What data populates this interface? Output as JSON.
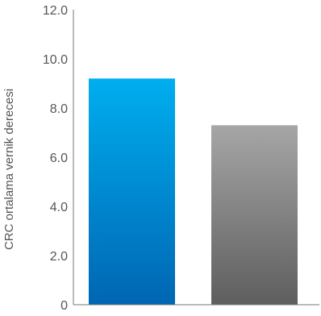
{
  "chart_data": {
    "type": "bar",
    "ylabel": "CRC ortalama vernik derecesi",
    "ylim": [
      0,
      12
    ],
    "yticks": [
      "0",
      "2.0",
      "4.0",
      "6.0",
      "8.0",
      "10.0",
      "12.0"
    ],
    "categories": [
      "",
      ""
    ],
    "values": [
      9.2,
      7.3
    ],
    "bar_colors": [
      {
        "top": "#00aeef",
        "bottom": "#0066b3"
      },
      {
        "top": "#a6a6a6",
        "bottom": "#5e5e5e"
      }
    ],
    "axis_color": "#777777",
    "grid": false
  }
}
